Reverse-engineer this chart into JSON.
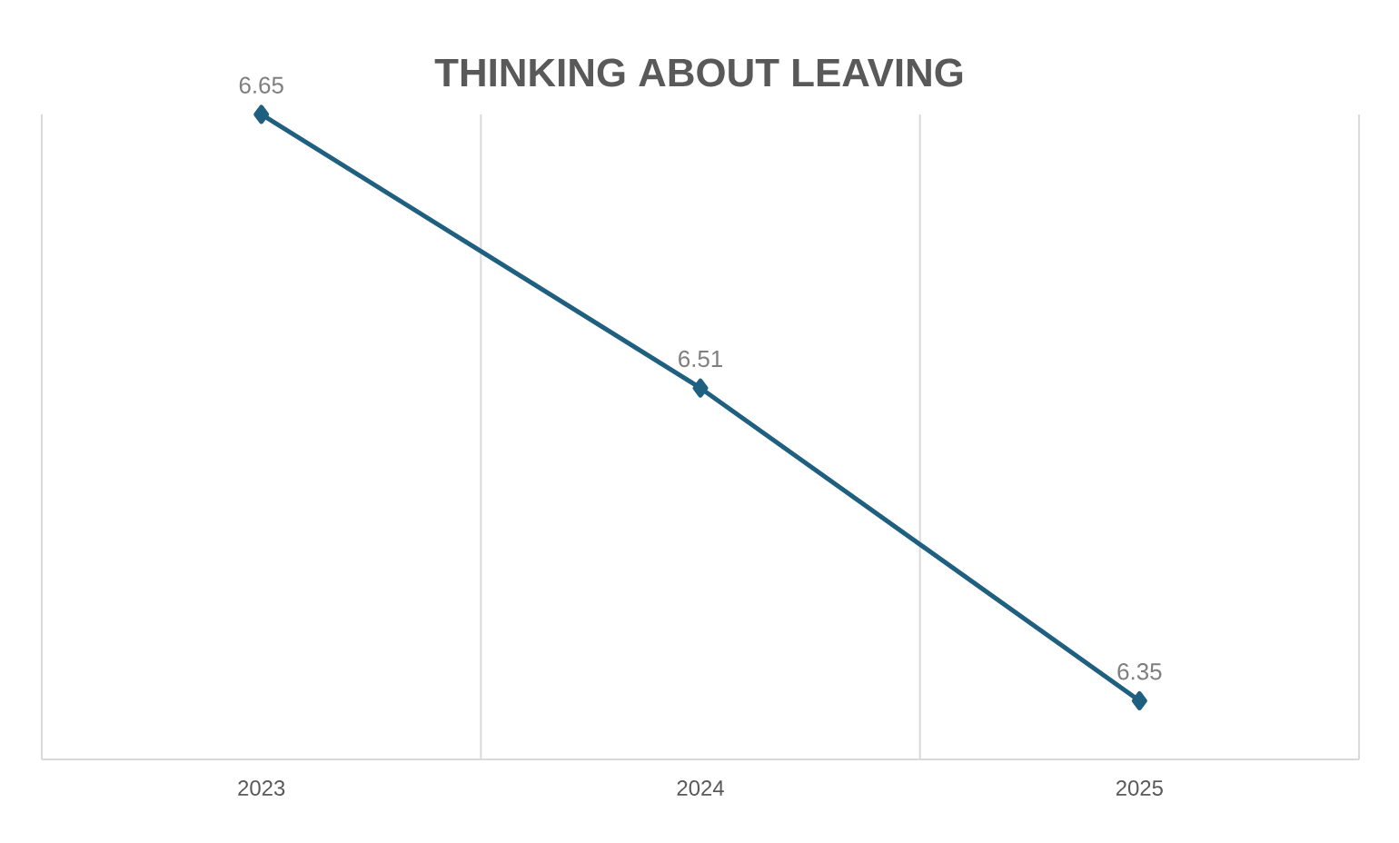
{
  "chart_data": {
    "type": "line",
    "title": "THINKING ABOUT LEAVING",
    "categories": [
      "2023",
      "2024",
      "2025"
    ],
    "values": [
      6.65,
      6.51,
      6.35
    ],
    "color": "#1f5f80",
    "marker": "diamond",
    "data_labels": true,
    "grid": "x"
  }
}
